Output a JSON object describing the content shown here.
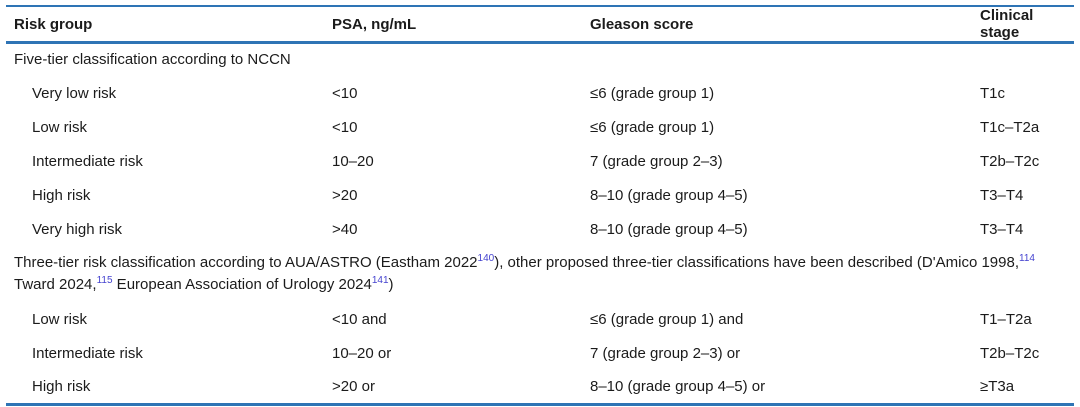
{
  "table": {
    "colors": {
      "rule_blue": "#2e74b5",
      "citation_blue": "#4543cf",
      "text": "#1b1b1b"
    },
    "columns": [
      {
        "label": "Risk group"
      },
      {
        "label": "PSA, ng/mL"
      },
      {
        "label": "Gleason score"
      },
      {
        "label": "Clinical stage"
      }
    ],
    "sections": [
      {
        "header_parts": [
          {
            "text": "Five-tier classification according to NCCN",
            "sup": false
          }
        ],
        "rows": [
          {
            "risk_group": "Very low risk",
            "psa": "<10",
            "gleason": "≤6 (grade group 1)",
            "clinical_stage": "T1c"
          },
          {
            "risk_group": "Low risk",
            "psa": "<10",
            "gleason": "≤6 (grade group 1)",
            "clinical_stage": "T1c–T2a"
          },
          {
            "risk_group": "Intermediate risk",
            "psa": "10–20",
            "gleason": "7 (grade group 2–3)",
            "clinical_stage": "T2b–T2c"
          },
          {
            "risk_group": "High risk",
            "psa": ">20",
            "gleason": "8–10 (grade group 4–5)",
            "clinical_stage": "T3–T4"
          },
          {
            "risk_group": "Very high risk",
            "psa": ">40",
            "gleason": "8–10 (grade group 4–5)",
            "clinical_stage": "T3–T4"
          }
        ]
      },
      {
        "header_parts": [
          {
            "text": "Three-tier risk classification according to AUA/ASTRO (Eastham 2022",
            "sup": false
          },
          {
            "text": "140",
            "sup": true
          },
          {
            "text": "), other proposed three-tier classifications have been described (D'Amico 1998,",
            "sup": false
          },
          {
            "text": "114",
            "sup": true
          },
          {
            "text": " Tward 2024,",
            "sup": false
          },
          {
            "text": "115",
            "sup": true
          },
          {
            "text": " European Association of Urology 2024",
            "sup": false
          },
          {
            "text": "141",
            "sup": true
          },
          {
            "text": ")",
            "sup": false
          }
        ],
        "rows": [
          {
            "risk_group": "Low risk",
            "psa": "<10 and",
            "gleason": "≤6 (grade group 1) and",
            "clinical_stage": "T1–T2a"
          },
          {
            "risk_group": "Intermediate risk",
            "psa": "10–20 or",
            "gleason": "7 (grade group 2–3) or",
            "clinical_stage": "T2b–T2c"
          },
          {
            "risk_group": "High risk",
            "psa": ">20 or",
            "gleason": "8–10 (grade group 4–5) or",
            "clinical_stage": "≥T3a"
          }
        ]
      }
    ]
  }
}
